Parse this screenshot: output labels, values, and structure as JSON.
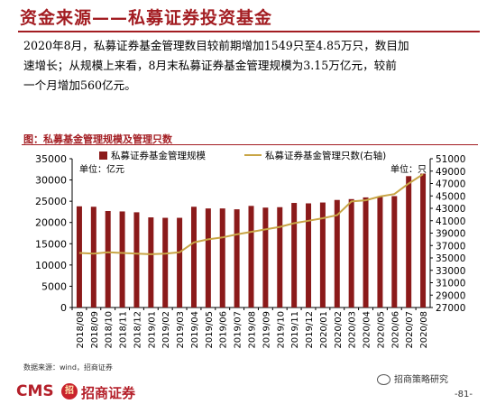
{
  "page": {
    "title": "资金来源——私募证券投资基金",
    "paragraph_lines": [
      "2020年8月，私募证券基金管理数目较前期增加1549只至4.85万只，数目加",
      "速增长；从规模上来看，8月末私募证券基金管理规模为3.15万亿元，较前",
      "一个月增加560亿元。"
    ],
    "source": "数据来源：wind，招商证券",
    "brand_cms": "CMS",
    "brand_badge": "招",
    "brand_name": "招商证券",
    "wechat_label": "招商策略研究",
    "page_number": "-81-"
  },
  "chart_data": {
    "type": "bar+line",
    "title": "图：私募基金管理规模及管理只数",
    "categories": [
      "2018/08",
      "2018/09",
      "2018/10",
      "2018/11",
      "2018/12",
      "2019/01",
      "2019/02",
      "2019/03",
      "2019/04",
      "2019/05",
      "2019/06",
      "2019/07",
      "2019/08",
      "2019/09",
      "2019/10",
      "2019/11",
      "2019/12",
      "2020/01",
      "2020/02",
      "2020/03",
      "2020/04",
      "2020/05",
      "2020/06",
      "2020/07",
      "2020/08"
    ],
    "left_axis": {
      "unit_label": "单位：亿元",
      "ylim": [
        0,
        35000
      ],
      "ticks": [
        0,
        5000,
        10000,
        15000,
        20000,
        25000,
        30000,
        35000
      ]
    },
    "right_axis": {
      "unit_label": "单位：只",
      "ylim": [
        27000,
        51000
      ],
      "ticks": [
        27000,
        29000,
        31000,
        33000,
        35000,
        37000,
        39000,
        41000,
        43000,
        45000,
        47000,
        49000,
        51000
      ]
    },
    "series": [
      {
        "name": "私募证券基金管理规模",
        "type": "bar",
        "axis": "left",
        "color": "#8b1a1a",
        "values": [
          23800,
          23700,
          22700,
          22600,
          22400,
          21200,
          21100,
          21100,
          23700,
          23300,
          23300,
          23100,
          23900,
          23500,
          23600,
          24600,
          24500,
          24700,
          25300,
          25500,
          25900,
          26000,
          26200,
          30900,
          31500
        ]
      },
      {
        "name": "私募证券基金管理只数(右轴)",
        "type": "line",
        "axis": "right",
        "color": "#c8a546",
        "values": [
          35800,
          35700,
          35900,
          35800,
          35700,
          35600,
          35700,
          35900,
          37500,
          38000,
          38300,
          38800,
          39200,
          39600,
          40000,
          40600,
          41000,
          41400,
          41900,
          44100,
          44300,
          44900,
          45300,
          47000,
          48500
        ]
      }
    ],
    "legend": "top-center",
    "grid": false
  }
}
